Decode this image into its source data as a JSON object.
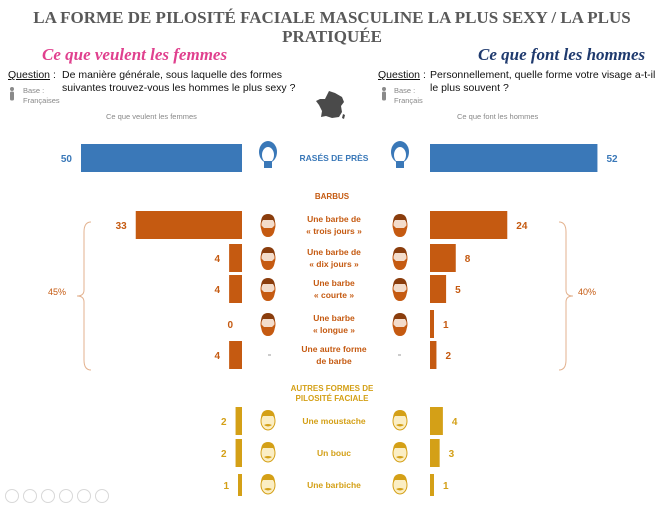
{
  "title": "LA FORME DE PILOSITÉ FACIALE MASCULINE LA PLUS SEXY / LA PLUS PRATIQUÉE",
  "left": {
    "heading": "Ce que veulent les femmes",
    "question_label": "Question",
    "question": "De manière générale, sous laquelle des formes suivantes trouvez-vous les hommes le plus sexy ?",
    "base_label": "Base :",
    "base_value": "Françaises",
    "column_header": "Ce que veulent les femmes",
    "group_pct": "45%"
  },
  "right": {
    "heading": "Ce que font les hommes",
    "question_label": "Question",
    "question": "Personnellement, quelle forme votre visage a-t-il le plus souvent ?",
    "base_label": "Base :",
    "base_value": "Français",
    "column_header": "Ce que font les hommes",
    "group_pct": "40%"
  },
  "sections": {
    "barbus": "BARBUS",
    "autres": "AUTRES FORMES DE PILOSITÉ FACIALE"
  },
  "colors": {
    "shaved": "#3a78b8",
    "beard": "#c55a11",
    "other": "#d4a017"
  },
  "chart_data": {
    "type": "bar",
    "orientation": "horizontal-butterfly",
    "categories": [
      "RASÉS DE PRÈS",
      "Une barbe de « trois jours »",
      "Une barbe de « dix jours »",
      "Une barbe « courte »",
      "Une barbe « longue »",
      "Une autre forme de barbe",
      "Une moustache",
      "Un bouc",
      "Une barbiche"
    ],
    "labels": [
      [
        "RASÉS DE PRÈS"
      ],
      [
        "Une barbe de",
        "« trois jours »"
      ],
      [
        "Une barbe de",
        "« dix jours »"
      ],
      [
        "Une barbe",
        "« courte »"
      ],
      [
        "Une barbe",
        "« longue »"
      ],
      [
        "Une autre forme",
        "de barbe"
      ],
      [
        "Une moustache"
      ],
      [
        "Un bouc"
      ],
      [
        "Une barbiche"
      ]
    ],
    "groups": [
      "shaved",
      "beard",
      "beard",
      "beard",
      "beard",
      "beard",
      "other",
      "other",
      "other"
    ],
    "series": [
      {
        "name": "Ce que veulent les femmes",
        "values": [
          50,
          33,
          4,
          4,
          0,
          4,
          2,
          2,
          1
        ]
      },
      {
        "name": "Ce que font les hommes",
        "values": [
          52,
          24,
          8,
          5,
          1,
          2,
          4,
          3,
          1
        ]
      }
    ],
    "value_labels_left": [
      "50",
      "33",
      "4",
      "4",
      "0",
      "4",
      "2",
      "2",
      "1"
    ],
    "value_labels_right": [
      "52",
      "24",
      "8",
      "5",
      "1",
      "2",
      "4",
      "3",
      "1"
    ],
    "xlim": [
      0,
      55
    ]
  }
}
